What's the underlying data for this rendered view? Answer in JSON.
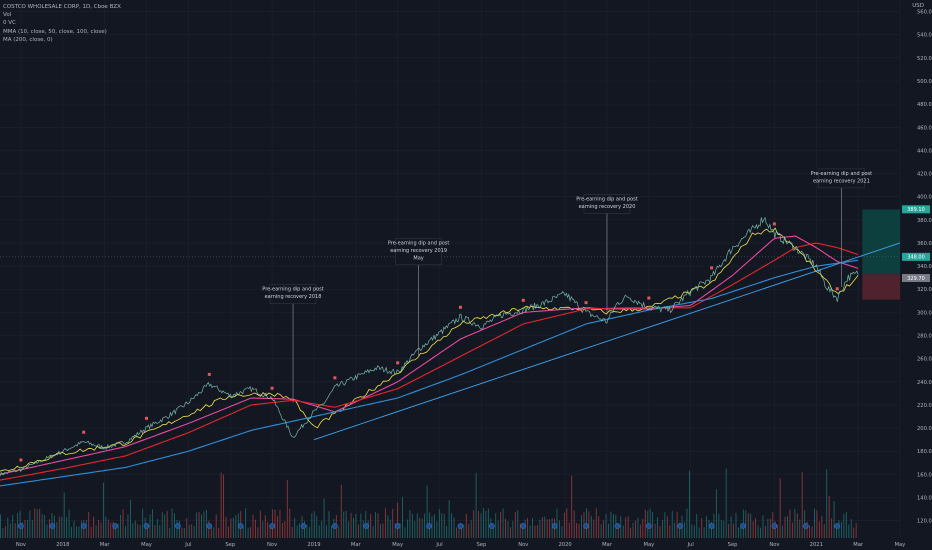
{
  "header": {
    "title": "COSTCO WHOLESALE CORP, 1D, Cboe BZX",
    "indicators": [
      "Vol",
      "0 VC",
      "MMA (10, close, 50, close, 100, close)",
      "MA (200, close, 0)"
    ],
    "currency": "USD"
  },
  "colors": {
    "background": "#131722",
    "grid": "#1e2230",
    "ma10": "#f0e34b",
    "ma50": "#e94aa0",
    "ma100": "#e5272c",
    "ma200": "#2f8fd8",
    "trendline": "#3da5f4",
    "up": "#26a69a",
    "down": "#ef5350",
    "target_zone": "#0e4744",
    "stop_zone": "#5a2430"
  },
  "chart_data": {
    "type": "line",
    "title": "COSTCO WHOLESALE CORP, 1D, Cboe BZX",
    "ylim": [
      105,
      570
    ],
    "y_ticks": [
      120,
      140,
      160,
      180,
      200,
      220,
      240,
      260,
      280,
      300,
      320,
      340,
      360,
      380,
      400,
      420,
      440,
      460,
      480,
      500,
      520,
      540,
      560
    ],
    "x_ticks": [
      "Nov",
      "2018",
      "Mar",
      "May",
      "Jul",
      "Sep",
      "Nov",
      "2019",
      "Mar",
      "May",
      "Jul",
      "Sep",
      "Nov",
      "2020",
      "Mar",
      "May",
      "Jul",
      "Sep",
      "Nov",
      "2021",
      "Mar",
      "May"
    ],
    "x_tick_index": [
      0,
      2,
      4,
      6,
      8,
      10,
      12,
      14,
      16,
      18,
      20,
      22,
      24,
      26,
      28,
      30,
      32,
      34,
      36,
      38,
      40,
      42
    ],
    "x_range_months": [
      -1,
      42
    ],
    "price_series": {
      "name": "Close",
      "months": [
        -1,
        0,
        1,
        2,
        3,
        4,
        5,
        6,
        7,
        8,
        9,
        10,
        11,
        12,
        13,
        14,
        14.5,
        15,
        16,
        17,
        18,
        19,
        20,
        21,
        22,
        23,
        24,
        25,
        26,
        27,
        28,
        28.5,
        29,
        30,
        31,
        32,
        33,
        34,
        35,
        35.5,
        36,
        37,
        38,
        38.5,
        39,
        39.5,
        40
      ],
      "values": [
        160,
        164,
        172,
        180,
        188,
        183,
        188,
        200,
        210,
        222,
        238,
        228,
        234,
        226,
        192,
        214,
        222,
        235,
        244,
        252,
        248,
        268,
        282,
        296,
        288,
        298,
        302,
        308,
        316,
        300,
        292,
        308,
        314,
        304,
        302,
        318,
        330,
        356,
        372,
        382,
        368,
        356,
        340,
        322,
        312,
        330,
        334
      ]
    },
    "series": [
      {
        "name": "MA 10",
        "months": [
          -1,
          2,
          5,
          8,
          10,
          12,
          13,
          14,
          15,
          18,
          21,
          24,
          27,
          28,
          30,
          33,
          35,
          36,
          37,
          38,
          39,
          40
        ],
        "values": [
          162,
          178,
          187,
          212,
          228,
          230,
          225,
          200,
          212,
          248,
          290,
          304,
          303,
          300,
          304,
          325,
          368,
          372,
          356,
          336,
          316,
          330
        ]
      },
      {
        "name": "MA 50",
        "months": [
          -1,
          2,
          5,
          8,
          11,
          13,
          15,
          18,
          21,
          24,
          27,
          28,
          30,
          32,
          34,
          36,
          37,
          38,
          39,
          40
        ],
        "values": [
          160,
          172,
          184,
          204,
          226,
          225,
          214,
          240,
          277,
          300,
          304,
          303,
          303,
          306,
          332,
          364,
          366,
          356,
          344,
          338
        ]
      },
      {
        "name": "MA 100",
        "months": [
          -1,
          2,
          5,
          8,
          11,
          13,
          15,
          18,
          21,
          24,
          27,
          29,
          32,
          34,
          36,
          37,
          38,
          39,
          40
        ],
        "values": [
          155,
          165,
          176,
          196,
          220,
          224,
          218,
          234,
          262,
          290,
          303,
          304,
          304,
          324,
          345,
          356,
          360,
          356,
          350
        ]
      },
      {
        "name": "MA 200",
        "months": [
          -1,
          2,
          5,
          8,
          11,
          14,
          18,
          21,
          24,
          27,
          30,
          33,
          36,
          38,
          40
        ],
        "values": [
          150,
          158,
          166,
          180,
          198,
          210,
          226,
          246,
          268,
          290,
          302,
          312,
          330,
          340,
          345
        ]
      }
    ],
    "trendline": {
      "from": {
        "month": 14,
        "value": 190
      },
      "to": {
        "month": 42,
        "value": 360
      }
    },
    "current_price": 348,
    "price_tags": [
      {
        "value": 389.1,
        "label": "389.10"
      },
      {
        "value": 348,
        "label": "348.00"
      },
      {
        "value": 329.7,
        "label": "329.70"
      }
    ],
    "long_position": {
      "from_month": 40.2,
      "to_month": 42,
      "entry": 333,
      "target": 389,
      "stop": 311
    },
    "annotations": [
      {
        "month": 13,
        "value": 222,
        "text": [
          "Pre-earning dip and post",
          "earning recovery 2018"
        ]
      },
      {
        "month": 19,
        "value": 262,
        "text": [
          "Pre-earning dip and post",
          "earning recovery 2019",
          "May"
        ]
      },
      {
        "month": 28,
        "value": 300,
        "text": [
          "Pre-earning dip and post",
          "earning recovery 2020"
        ]
      },
      {
        "month": 39.2,
        "value": 322,
        "text": [
          "Pre-earning dip and post",
          "earning recovery 2021"
        ]
      }
    ],
    "grid": true,
    "legend": "top-left"
  }
}
